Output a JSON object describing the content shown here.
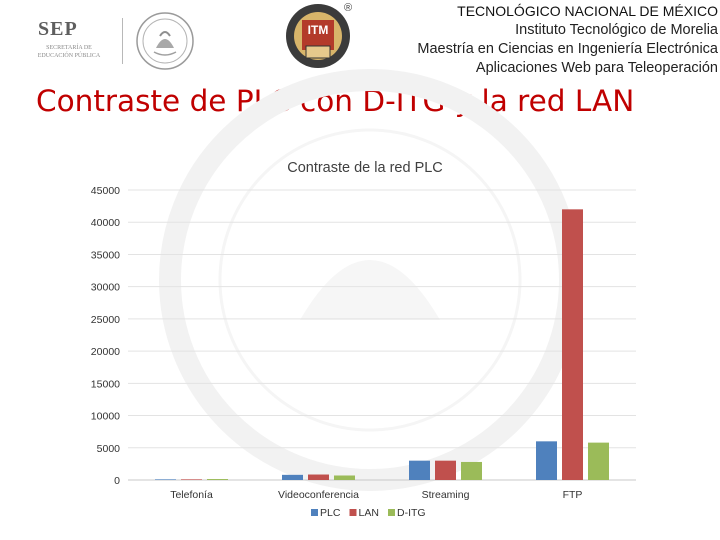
{
  "header": {
    "sep_logo_text": "SEP",
    "sep_subtitle_1": "SECRETARÍA DE",
    "sep_subtitle_2": "EDUCACIÓN PÚBLICA",
    "itm_logo_text": "ITM",
    "registered_mark": "®",
    "institution_lines": [
      "TECNOLÓGICO NACIONAL DE MÉXICO",
      "Instituto Tecnológico de Morelia",
      "Maestría en Ciencias en Ingeniería Electrónica",
      "Aplicaciones Web para Teleoperación"
    ]
  },
  "page_title": "Contraste de PLC con D-ITG y la red LAN",
  "chart_data": {
    "type": "bar",
    "title": "Contraste de la red PLC",
    "xlabel": "",
    "ylabel": "",
    "categories": [
      "Telefonía",
      "Videoconferencia",
      "Streaming",
      "FTP"
    ],
    "series": [
      {
        "name": "PLC",
        "color": "#4f81bd",
        "values": [
          100,
          800,
          3000,
          6000
        ]
      },
      {
        "name": "LAN",
        "color": "#c0504d",
        "values": [
          100,
          850,
          3000,
          42000
        ]
      },
      {
        "name": "D-ITG",
        "color": "#9bbb59",
        "values": [
          150,
          700,
          2800,
          5800
        ]
      }
    ],
    "ylim": [
      0,
      45000
    ],
    "yticks": [
      0,
      5000,
      10000,
      15000,
      20000,
      25000,
      30000,
      35000,
      40000,
      45000
    ],
    "grid": true,
    "legend": "bottom"
  }
}
